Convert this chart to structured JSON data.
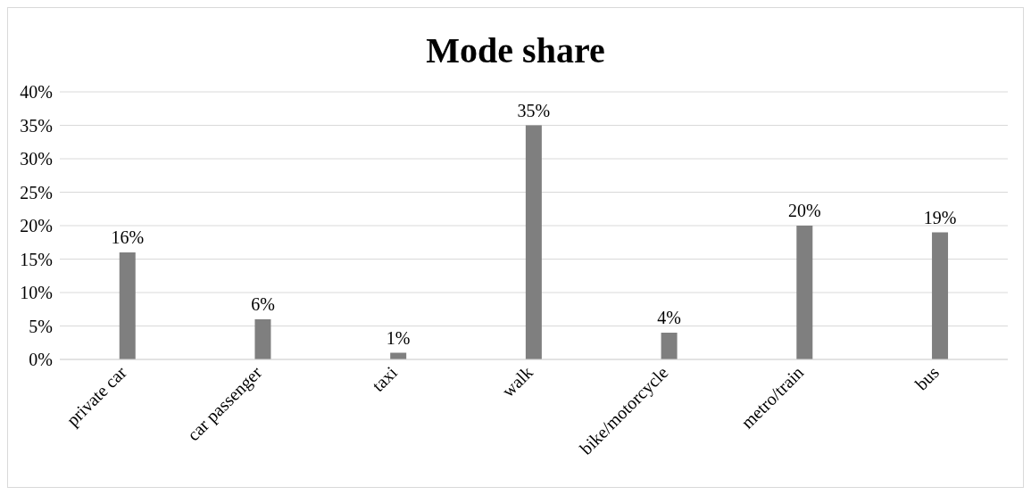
{
  "chart_data": {
    "type": "bar",
    "title": "Mode share",
    "categories": [
      "private car",
      "car passenger",
      "taxi",
      "walk",
      "bike/motorcycle",
      "metro/train",
      "bus"
    ],
    "values": [
      16,
      6,
      1,
      35,
      4,
      20,
      19
    ],
    "value_labels": [
      "16%",
      "6%",
      "1%",
      "35%",
      "4%",
      "20%",
      "19%"
    ],
    "color": "#7f7f7f",
    "ylim": [
      0,
      40
    ],
    "yticks": [
      {
        "value": 0,
        "label": "0%"
      },
      {
        "value": 5,
        "label": "5%"
      },
      {
        "value": 10,
        "label": "10%"
      },
      {
        "value": 15,
        "label": "15%"
      },
      {
        "value": 20,
        "label": "20%"
      },
      {
        "value": 25,
        "label": "25%"
      },
      {
        "value": 30,
        "label": "30%"
      },
      {
        "value": 35,
        "label": "35%"
      },
      {
        "value": 40,
        "label": "40%"
      }
    ],
    "grid": "y"
  }
}
